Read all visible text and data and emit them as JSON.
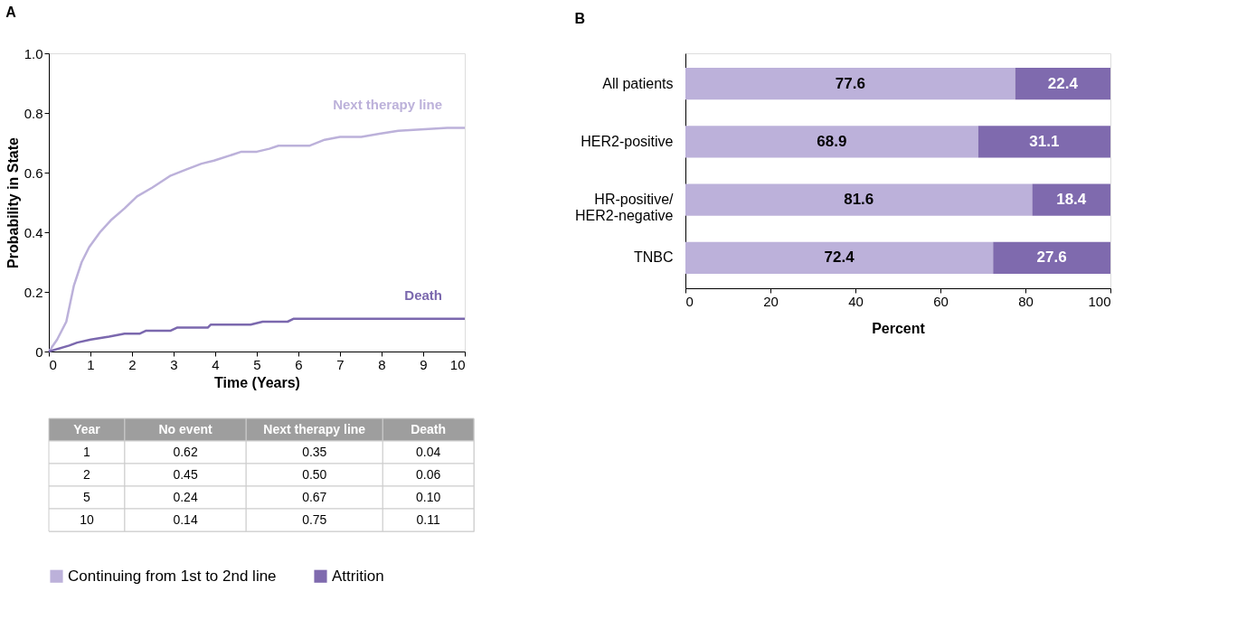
{
  "chart_data": [
    {
      "type": "line",
      "title": "A",
      "xlabel": "Time (Years)",
      "ylabel": "Probability in State",
      "xlim": [
        0,
        10
      ],
      "xticks": [
        0,
        1,
        2,
        3,
        4,
        5,
        6,
        7,
        8,
        9,
        10
      ],
      "ylim": [
        0,
        1
      ],
      "yticks": [
        0,
        0.2,
        0.4,
        0.6,
        0.8,
        {
          "value": 1,
          "label": "1.0"
        }
      ],
      "grid": false,
      "legend": false,
      "series": [
        {
          "name": "Next therapy line",
          "color": "#bcb1da",
          "x": [
            0,
            0.2,
            0.42,
            0.6,
            0.79,
            0.97,
            1.23,
            1.49,
            1.82,
            2.12,
            2.49,
            2.93,
            3.3,
            3.67,
            3.97,
            4.41,
            4.63,
            5.0,
            5.3,
            5.52,
            6.26,
            6.63,
            7.0,
            7.51,
            7.95,
            8.4,
            9.58,
            10
          ],
          "values": [
            0,
            0.04,
            0.1,
            0.22,
            0.3,
            0.35,
            0.4,
            0.44,
            0.48,
            0.52,
            0.55,
            0.59,
            0.61,
            0.63,
            0.64,
            0.66,
            0.67,
            0.67,
            0.68,
            0.69,
            0.69,
            0.71,
            0.72,
            0.72,
            0.73,
            0.74,
            0.75,
            0.75
          ]
        },
        {
          "name": "Death",
          "color": "#7b68ae",
          "x": [
            0,
            0.49,
            0.68,
            1.01,
            1.45,
            1.82,
            2.19,
            2.34,
            2.93,
            3.08,
            3.82,
            3.89,
            4.26,
            4.33,
            4.85,
            5.14,
            5.74,
            5.89,
            7.88,
            8.03,
            10
          ],
          "values": [
            0,
            0.02,
            0.03,
            0.04,
            0.05,
            0.06,
            0.06,
            0.07,
            0.07,
            0.08,
            0.08,
            0.09,
            0.09,
            0.09,
            0.09,
            0.1,
            0.1,
            0.11,
            0.11,
            0.11,
            0.11
          ]
        }
      ]
    },
    {
      "type": "other",
      "categories": [
        "Year",
        "No event",
        "Next therapy line",
        "Death"
      ],
      "cell_labels": [
        [
          "1",
          "0.62",
          "0.35",
          "0.04"
        ],
        [
          "2",
          "0.45",
          "0.50",
          "0.06"
        ],
        [
          "5",
          "0.24",
          "0.67",
          "0.10"
        ],
        [
          "10",
          "0.14",
          "0.75",
          "0.11"
        ]
      ]
    },
    {
      "type": "bar",
      "title": "B",
      "orientation": "horizontal",
      "stacked": true,
      "xlabel": "Percent",
      "categories": [
        "All patients",
        "HER2-positive",
        "HR-positive/\nHER2-negative",
        "TNBC"
      ],
      "xlim": [
        0,
        100
      ],
      "xticks": [
        0,
        20,
        40,
        60,
        80,
        100
      ],
      "grid": false,
      "legend": "bottom",
      "data_labels": true,
      "series": [
        {
          "name": "Continuing from 1st to 2nd line",
          "color": "#bcb1da",
          "values": [
            77.6,
            68.9,
            81.6,
            72.4
          ]
        },
        {
          "name": "Attrition",
          "color": "#7f6aae",
          "values": [
            22.4,
            31.1,
            18.4,
            27.6
          ]
        }
      ]
    }
  ]
}
